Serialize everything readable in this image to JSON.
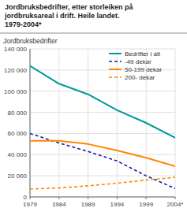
{
  "chart_data": {
    "type": "line",
    "title": "Jordbruksbedrifter, etter storleiken på\njordbruksareal i drift. Heile landet.\n1979-2004*",
    "y_label": "Jordbruksbedrifter",
    "x": [
      1979,
      1984,
      1989,
      1994,
      1999,
      2004
    ],
    "series": [
      {
        "name": "Bedrifter i alt",
        "color": "#009999",
        "line_style": "solid",
        "values": [
          124000,
          107000,
          97000,
          82000,
          70000,
          56000
        ]
      },
      {
        "name": "-49 dekar",
        "color": "#1a1aaa",
        "line_style": "dashed",
        "values": [
          60000,
          51000,
          43000,
          34000,
          20000,
          8000
        ]
      },
      {
        "name": "50-199 dekar",
        "color": "#ff8800",
        "line_style": "solid",
        "values": [
          53000,
          53000,
          50000,
          44000,
          37000,
          29000
        ]
      },
      {
        "name": "200- dekar",
        "color": "#ff8800",
        "line_style": "dashed",
        "values": [
          7500,
          8500,
          10500,
          13000,
          16000,
          18500
        ]
      }
    ],
    "xlim": [
      1979,
      2004
    ],
    "xticks": [
      1979,
      1984,
      1989,
      1994,
      1999,
      {
        "value": 2004,
        "label": "2004*"
      }
    ],
    "ylim": [
      0,
      140000
    ],
    "yticks": [
      0,
      {
        "value": 20000,
        "label": "20 000"
      },
      {
        "value": 40000,
        "label": "40 000"
      },
      {
        "value": 60000,
        "label": "60 000"
      },
      {
        "value": 80000,
        "label": "80 000"
      },
      {
        "value": 100000,
        "label": "100 000"
      },
      {
        "value": 120000,
        "label": "120 000"
      },
      {
        "value": 140000,
        "label": "140 000"
      }
    ],
    "grid": true,
    "legend": "upper right"
  }
}
